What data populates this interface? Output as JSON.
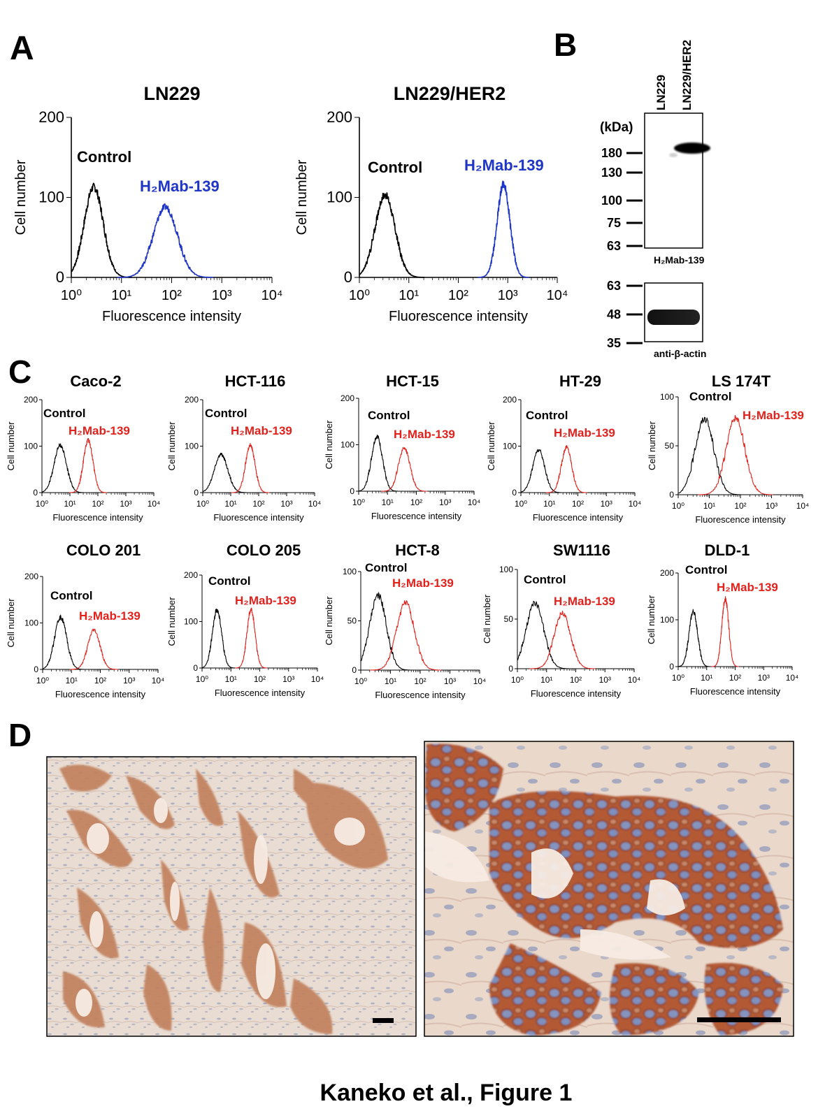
{
  "figure": {
    "caption": "Kaneko et al., Figure 1",
    "panel_labels": {
      "a": "A",
      "b": "B",
      "c": "C",
      "d": "D"
    }
  },
  "panel_b": {
    "lanes": [
      "LN229",
      "LN229/HER2"
    ],
    "kda_label": "(kDa)",
    "upper_markers": [
      "180",
      "130",
      "100",
      "75",
      "63"
    ],
    "lower_markers": [
      "63",
      "48",
      "35"
    ],
    "upper_blot_label": "H₂Mab-139",
    "lower_blot_label": "anti-β-actin"
  },
  "chart_data": [
    {
      "type": "line",
      "id": "A-LN229",
      "title": "LN229",
      "xlabel": "Fluorescence intensity",
      "ylabel": "Cell number",
      "xscale": "log",
      "xlim": [
        1,
        10000
      ],
      "ylim": [
        0,
        200
      ],
      "x_ticks": [
        "10⁰",
        "10¹",
        "10²",
        "10³",
        "10⁴"
      ],
      "y_ticks": [
        "0",
        "100",
        "200"
      ],
      "series": [
        {
          "name": "Control",
          "color": "#000000",
          "peak_x": 2.8,
          "peak_y": 113,
          "width": 0.19,
          "start_x": 1.0
        },
        {
          "name": "H₂Mab-139",
          "color": "#1f35c8",
          "peak_x": 75,
          "peak_y": 88,
          "width": 0.24,
          "start_x": 5
        }
      ]
    },
    {
      "type": "line",
      "id": "A-LN229HER2",
      "title": "LN229/HER2",
      "xlabel": "Fluorescence intensity",
      "ylabel": "Cell number",
      "xscale": "log",
      "xlim": [
        1,
        10000
      ],
      "ylim": [
        0,
        200
      ],
      "x_ticks": [
        "10⁰",
        "10¹",
        "10²",
        "10³",
        "10⁴"
      ],
      "y_ticks": [
        "0",
        "100",
        "200"
      ],
      "series": [
        {
          "name": "Control",
          "color": "#000000",
          "peak_x": 3.3,
          "peak_y": 103,
          "width": 0.2,
          "start_x": 1.0
        },
        {
          "name": "H₂Mab-139",
          "color": "#1f35c8",
          "peak_x": 820,
          "peak_y": 116,
          "width": 0.13,
          "start_x": 5
        }
      ]
    },
    {
      "type": "line",
      "id": "C-Caco-2",
      "title": "Caco-2",
      "xlabel": "Fluorescence intensity",
      "ylabel": "Cell number",
      "xscale": "log",
      "xlim": [
        1,
        10000
      ],
      "ylim": [
        0,
        200
      ],
      "x_ticks": [
        "10⁰",
        "10¹",
        "10²",
        "10³",
        "10⁴"
      ],
      "y_ticks": [
        "0",
        "100",
        "200"
      ],
      "series": [
        {
          "name": "Control",
          "color": "#000000",
          "peak_x": 4.5,
          "peak_y": 102,
          "width": 0.22
        },
        {
          "name": "H₂Mab-139",
          "color": "#e3211c",
          "peak_x": 45,
          "peak_y": 112,
          "width": 0.17
        }
      ]
    },
    {
      "type": "line",
      "id": "C-HCT-116",
      "title": "HCT-116",
      "xlabel": "Fluorescence intensity",
      "ylabel": "Cell number",
      "xscale": "log",
      "xlim": [
        1,
        10000
      ],
      "ylim": [
        0,
        200
      ],
      "x_ticks": [
        "10⁰",
        "10¹",
        "10²",
        "10³",
        "10⁴"
      ],
      "y_ticks": [
        "0",
        "100",
        "200"
      ],
      "series": [
        {
          "name": "Control",
          "color": "#000000",
          "peak_x": 4.5,
          "peak_y": 82,
          "width": 0.24
        },
        {
          "name": "H₂Mab-139",
          "color": "#e3211c",
          "peak_x": 50,
          "peak_y": 102,
          "width": 0.17
        }
      ]
    },
    {
      "type": "line",
      "id": "C-HCT-15",
      "title": "HCT-15",
      "xlabel": "Fluorescence intensity",
      "ylabel": "Cell number",
      "xscale": "log",
      "xlim": [
        1,
        10000
      ],
      "ylim": [
        0,
        200
      ],
      "x_ticks": [
        "10⁰",
        "10¹",
        "10²",
        "10³",
        "10⁴"
      ],
      "y_ticks": [
        "0",
        "100",
        "200"
      ],
      "series": [
        {
          "name": "Control",
          "color": "#000000",
          "peak_x": 4.3,
          "peak_y": 118,
          "width": 0.19
        },
        {
          "name": "H₂Mab-139",
          "color": "#e3211c",
          "peak_x": 38,
          "peak_y": 93,
          "width": 0.2
        }
      ]
    },
    {
      "type": "line",
      "id": "C-HT-29",
      "title": "HT-29",
      "xlabel": "Fluorescence intensity",
      "ylabel": "Cell number",
      "xscale": "log",
      "xlim": [
        1,
        10000
      ],
      "ylim": [
        0,
        200
      ],
      "x_ticks": [
        "10⁰",
        "10¹",
        "10²",
        "10³",
        "10⁴"
      ],
      "y_ticks": [
        "0",
        "100",
        "200"
      ],
      "series": [
        {
          "name": "Control",
          "color": "#000000",
          "peak_x": 4.2,
          "peak_y": 92,
          "width": 0.21
        },
        {
          "name": "H₂Mab-139",
          "color": "#e3211c",
          "peak_x": 40,
          "peak_y": 98,
          "width": 0.18
        }
      ]
    },
    {
      "type": "line",
      "id": "C-LS174T",
      "title": "LS 174T",
      "xlabel": "Fluorescence intensity",
      "ylabel": "Cell number",
      "xscale": "log",
      "xlim": [
        1,
        10000
      ],
      "ylim": [
        0,
        100
      ],
      "x_ticks": [
        "10⁰",
        "10¹",
        "10²",
        "10³",
        "10⁴"
      ],
      "y_ticks": [
        "0",
        "50",
        "100"
      ],
      "series": [
        {
          "name": "Control",
          "color": "#000000",
          "peak_x": 7,
          "peak_y": 78,
          "width": 0.3
        },
        {
          "name": "H₂Mab-139",
          "color": "#e3211c",
          "peak_x": 70,
          "peak_y": 78,
          "width": 0.3
        }
      ]
    },
    {
      "type": "line",
      "id": "C-COLO201",
      "title": "COLO 201",
      "xlabel": "Fluorescence intensity",
      "ylabel": "Cell number",
      "xscale": "log",
      "xlim": [
        1,
        10000
      ],
      "ylim": [
        0,
        200
      ],
      "x_ticks": [
        "10⁰",
        "10¹",
        "10²",
        "10³",
        "10⁴"
      ],
      "y_ticks": [
        "0",
        "100",
        "200"
      ],
      "series": [
        {
          "name": "Control",
          "color": "#000000",
          "peak_x": 4.2,
          "peak_y": 112,
          "width": 0.21
        },
        {
          "name": "H₂Mab-139",
          "color": "#e3211c",
          "peak_x": 60,
          "peak_y": 85,
          "width": 0.21
        }
      ]
    },
    {
      "type": "line",
      "id": "C-COLO205",
      "title": "COLO 205",
      "xlabel": "Fluorescence intensity",
      "ylabel": "Cell number",
      "xscale": "log",
      "xlim": [
        1,
        10000
      ],
      "ylim": [
        0,
        200
      ],
      "x_ticks": [
        "10⁰",
        "10¹",
        "10²",
        "10³",
        "10⁴"
      ],
      "y_ticks": [
        "0",
        "100",
        "200"
      ],
      "series": [
        {
          "name": "Control",
          "color": "#000000",
          "peak_x": 3.3,
          "peak_y": 125,
          "width": 0.16
        },
        {
          "name": "H₂Mab-139",
          "color": "#e3211c",
          "peak_x": 50,
          "peak_y": 125,
          "width": 0.14
        }
      ]
    },
    {
      "type": "line",
      "id": "C-HCT-8",
      "title": "HCT-8",
      "xlabel": "Fluorescence intensity",
      "ylabel": "Cell number",
      "xscale": "log",
      "xlim": [
        1,
        10000
      ],
      "ylim": [
        0,
        100
      ],
      "x_ticks": [
        "10⁰",
        "10¹",
        "10²",
        "10³",
        "10⁴"
      ],
      "y_ticks": [
        "0",
        "50",
        "100"
      ],
      "series": [
        {
          "name": "Control",
          "color": "#000000",
          "peak_x": 3.8,
          "peak_y": 76,
          "width": 0.28
        },
        {
          "name": "H₂Mab-139",
          "color": "#e3211c",
          "peak_x": 32,
          "peak_y": 68,
          "width": 0.3
        }
      ]
    },
    {
      "type": "line",
      "id": "C-SW1116",
      "title": "SW1116",
      "xlabel": "Fluorescence intensity",
      "ylabel": "Cell number",
      "xscale": "log",
      "xlim": [
        1,
        10000
      ],
      "ylim": [
        0,
        100
      ],
      "x_ticks": [
        "10⁰",
        "10¹",
        "10²",
        "10³",
        "10⁴"
      ],
      "y_ticks": [
        "0",
        "50",
        "100"
      ],
      "series": [
        {
          "name": "Control",
          "color": "#000000",
          "peak_x": 4,
          "peak_y": 66,
          "width": 0.3
        },
        {
          "name": "H₂Mab-139",
          "color": "#e3211c",
          "peak_x": 35,
          "peak_y": 56,
          "width": 0.28
        }
      ]
    },
    {
      "type": "line",
      "id": "C-DLD-1",
      "title": "DLD-1",
      "xlabel": "Fluorescence intensity",
      "ylabel": "Cell number",
      "xscale": "log",
      "xlim": [
        1,
        10000
      ],
      "ylim": [
        0,
        200
      ],
      "x_ticks": [
        "10⁰",
        "10¹",
        "10²",
        "10³",
        "10⁴"
      ],
      "y_ticks": [
        "0",
        "100",
        "200"
      ],
      "series": [
        {
          "name": "Control",
          "color": "#000000",
          "peak_x": 3.4,
          "peak_y": 118,
          "width": 0.15
        },
        {
          "name": "H₂Mab-139",
          "color": "#e3211c",
          "peak_x": 45,
          "peak_y": 145,
          "width": 0.12
        }
      ]
    }
  ]
}
